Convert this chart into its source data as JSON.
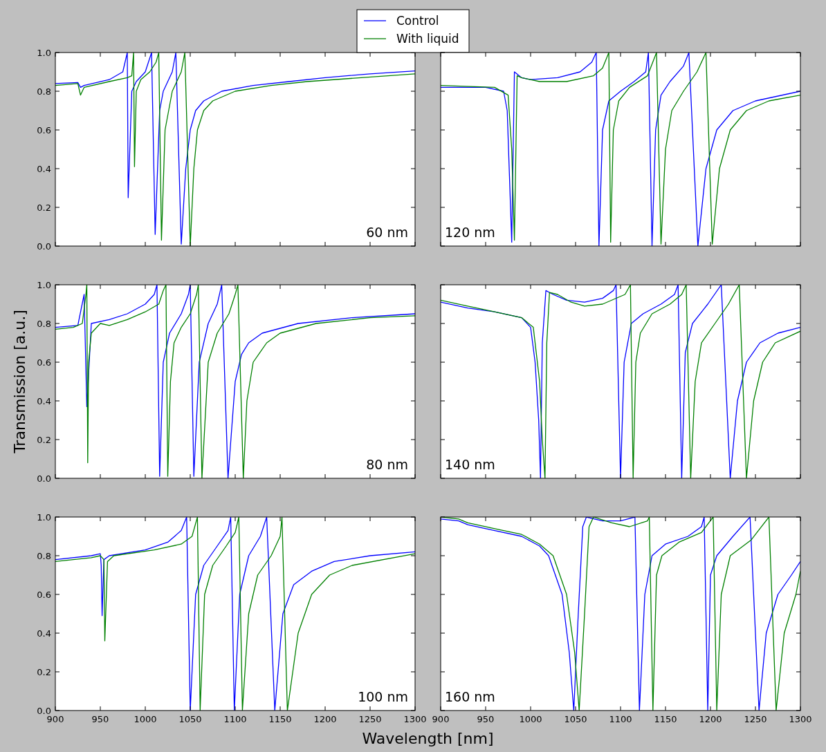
{
  "chart_data": [
    {
      "type": "line",
      "xlim": [
        900,
        1300
      ],
      "ylim": [
        0,
        1
      ],
      "xticks": [
        900,
        950,
        1000,
        1050,
        1100,
        1150,
        1200,
        1250,
        1300
      ],
      "yticks": [
        {
          "value": 0,
          "label": "0.0"
        },
        {
          "value": 0.2,
          "label": "0.2"
        },
        {
          "value": 0.4,
          "label": "0.4"
        },
        {
          "value": 0.6,
          "label": "0.6"
        },
        {
          "value": 0.8,
          "label": "0.8"
        },
        {
          "value": 1,
          "label": "1.0"
        }
      ],
      "tick_labels": "y",
      "legend": "top",
      "annotations": [
        "60 nm"
      ],
      "series": [
        {
          "name": "Control",
          "color": "#0000ff",
          "x": [
            900,
            925,
            928,
            932,
            960,
            975,
            980,
            981,
            985,
            990,
            1000,
            1007,
            1011,
            1016,
            1020,
            1030,
            1034,
            1040,
            1045,
            1050,
            1056,
            1065,
            1085,
            1120,
            1160,
            1200,
            1250,
            1300
          ],
          "values": [
            0.84,
            0.845,
            0.82,
            0.83,
            0.86,
            0.9,
            1.0,
            0.25,
            0.8,
            0.85,
            0.9,
            1.0,
            0.06,
            0.7,
            0.8,
            0.9,
            1.0,
            0.01,
            0.4,
            0.6,
            0.7,
            0.75,
            0.8,
            0.83,
            0.85,
            0.87,
            0.89,
            0.905
          ]
        },
        {
          "name": "With liquid",
          "color": "#008000",
          "x": [
            900,
            925,
            928,
            932,
            960,
            980,
            985,
            987,
            988,
            990,
            995,
            1005,
            1012,
            1015,
            1018,
            1022,
            1030,
            1040,
            1044,
            1050,
            1054,
            1058,
            1065,
            1075,
            1100,
            1140,
            1180,
            1240,
            1300
          ],
          "values": [
            0.83,
            0.84,
            0.78,
            0.82,
            0.85,
            0.87,
            0.88,
            1.0,
            0.41,
            0.8,
            0.86,
            0.9,
            0.95,
            1.0,
            0.03,
            0.6,
            0.8,
            0.9,
            1.0,
            0.0,
            0.4,
            0.6,
            0.7,
            0.75,
            0.8,
            0.83,
            0.85,
            0.87,
            0.89
          ]
        }
      ]
    },
    {
      "type": "line",
      "xlim": [
        900,
        1300
      ],
      "ylim": [
        0,
        1
      ],
      "xticks": [
        900,
        950,
        1000,
        1050,
        1100,
        1150,
        1200,
        1250,
        1300
      ],
      "yticks": [
        0,
        0.2,
        0.4,
        0.6,
        0.8,
        1
      ],
      "tick_labels": false,
      "annotations": [
        "120 nm"
      ],
      "series": [
        {
          "color": "#0000ff",
          "x": [
            900,
            950,
            970,
            974,
            979,
            982,
            990,
            1000,
            1030,
            1055,
            1068,
            1073,
            1076,
            1080,
            1087,
            1100,
            1115,
            1128,
            1131,
            1135,
            1139,
            1145,
            1155,
            1170,
            1176,
            1186,
            1195,
            1207,
            1225,
            1250,
            1300
          ],
          "values": [
            0.82,
            0.82,
            0.8,
            0.7,
            0.02,
            0.9,
            0.87,
            0.86,
            0.87,
            0.9,
            0.95,
            1.0,
            0.0,
            0.6,
            0.75,
            0.8,
            0.85,
            0.9,
            1.0,
            0.0,
            0.6,
            0.78,
            0.85,
            0.93,
            1.0,
            0.0,
            0.4,
            0.6,
            0.7,
            0.75,
            0.8
          ]
        },
        {
          "color": "#008000",
          "x": [
            900,
            960,
            975,
            979,
            982,
            985,
            990,
            1010,
            1040,
            1070,
            1080,
            1087,
            1089,
            1092,
            1098,
            1110,
            1130,
            1140,
            1145,
            1150,
            1157,
            1170,
            1185,
            1195,
            1202,
            1210,
            1222,
            1240,
            1265,
            1300
          ],
          "values": [
            0.83,
            0.82,
            0.78,
            0.5,
            0.03,
            0.88,
            0.87,
            0.85,
            0.85,
            0.88,
            0.92,
            1.0,
            0.02,
            0.6,
            0.75,
            0.82,
            0.88,
            1.0,
            0.01,
            0.5,
            0.7,
            0.8,
            0.9,
            1.0,
            0.01,
            0.4,
            0.6,
            0.7,
            0.75,
            0.78
          ]
        }
      ]
    },
    {
      "type": "line",
      "xlim": [
        900,
        1300
      ],
      "ylim": [
        0,
        1
      ],
      "xticks": [
        900,
        950,
        1000,
        1050,
        1100,
        1150,
        1200,
        1250,
        1300
      ],
      "yticks": [
        {
          "value": 0,
          "label": "0.0"
        },
        {
          "value": 0.2,
          "label": "0.2"
        },
        {
          "value": 0.4,
          "label": "0.4"
        },
        {
          "value": 0.6,
          "label": "0.6"
        },
        {
          "value": 0.8,
          "label": "0.8"
        },
        {
          "value": 1,
          "label": "1.0"
        }
      ],
      "tick_labels": "y",
      "ylabel": "Transmission [a.u.]",
      "annotations": [
        "80 nm"
      ],
      "series": [
        {
          "color": "#0000ff",
          "x": [
            900,
            925,
            932,
            935,
            940,
            960,
            980,
            1000,
            1010,
            1013,
            1016,
            1020,
            1027,
            1040,
            1048,
            1050,
            1054,
            1060,
            1070,
            1080,
            1085,
            1092,
            1100,
            1107,
            1115,
            1130,
            1170,
            1230,
            1300
          ],
          "values": [
            0.78,
            0.79,
            0.95,
            0.37,
            0.8,
            0.82,
            0.85,
            0.9,
            0.95,
            1.0,
            0.01,
            0.6,
            0.75,
            0.85,
            0.95,
            1.0,
            0.01,
            0.6,
            0.8,
            0.9,
            1.0,
            0.0,
            0.5,
            0.64,
            0.7,
            0.75,
            0.8,
            0.83,
            0.85
          ]
        },
        {
          "color": "#008000",
          "x": [
            900,
            920,
            930,
            934,
            935,
            936,
            937,
            940,
            950,
            960,
            980,
            1000,
            1015,
            1020,
            1023,
            1025,
            1028,
            1032,
            1040,
            1050,
            1057,
            1059,
            1063,
            1070,
            1080,
            1093,
            1100,
            1103,
            1109,
            1113,
            1120,
            1135,
            1150,
            1190,
            1250,
            1300
          ],
          "values": [
            0.77,
            0.78,
            0.8,
            0.95,
            1.0,
            0.08,
            0.6,
            0.75,
            0.8,
            0.79,
            0.82,
            0.86,
            0.9,
            0.97,
            1.0,
            0.01,
            0.5,
            0.7,
            0.78,
            0.85,
            0.95,
            1.0,
            0.0,
            0.6,
            0.75,
            0.85,
            0.95,
            1.0,
            0.0,
            0.4,
            0.6,
            0.7,
            0.75,
            0.8,
            0.83,
            0.84
          ]
        }
      ]
    },
    {
      "type": "line",
      "xlim": [
        900,
        1300
      ],
      "ylim": [
        0,
        1
      ],
      "xticks": [
        900,
        950,
        1000,
        1050,
        1100,
        1150,
        1200,
        1250,
        1300
      ],
      "yticks": [
        0,
        0.2,
        0.4,
        0.6,
        0.8,
        1
      ],
      "tick_labels": false,
      "annotations": [
        "140 nm"
      ],
      "series": [
        {
          "color": "#0000ff",
          "x": [
            900,
            930,
            960,
            990,
            1000,
            1005,
            1009,
            1011,
            1013,
            1017,
            1025,
            1040,
            1060,
            1080,
            1092,
            1095,
            1100,
            1104,
            1112,
            1125,
            1145,
            1160,
            1164,
            1168,
            1172,
            1180,
            1197,
            1212,
            1222,
            1230,
            1240,
            1255,
            1275,
            1300
          ],
          "values": [
            0.91,
            0.88,
            0.86,
            0.83,
            0.78,
            0.6,
            0.3,
            0.0,
            0.7,
            0.97,
            0.95,
            0.92,
            0.91,
            0.93,
            0.97,
            1.0,
            0.0,
            0.6,
            0.8,
            0.85,
            0.9,
            0.95,
            1.0,
            0.0,
            0.65,
            0.8,
            0.9,
            1.0,
            0.0,
            0.4,
            0.6,
            0.7,
            0.75,
            0.78
          ]
        },
        {
          "color": "#008000",
          "x": [
            900,
            930,
            960,
            990,
            1003,
            1010,
            1013,
            1016,
            1018,
            1021,
            1030,
            1045,
            1060,
            1080,
            1105,
            1111,
            1114,
            1117,
            1122,
            1135,
            1155,
            1168,
            1173,
            1178,
            1183,
            1190,
            1205,
            1220,
            1232,
            1240,
            1248,
            1258,
            1272,
            1300
          ],
          "values": [
            0.92,
            0.89,
            0.86,
            0.83,
            0.78,
            0.5,
            0.2,
            0.0,
            0.7,
            0.96,
            0.95,
            0.91,
            0.89,
            0.9,
            0.95,
            1.0,
            0.0,
            0.6,
            0.75,
            0.85,
            0.9,
            0.95,
            1.0,
            0.0,
            0.5,
            0.7,
            0.8,
            0.9,
            1.0,
            0.0,
            0.4,
            0.6,
            0.7,
            0.76
          ]
        }
      ]
    },
    {
      "type": "line",
      "xlim": [
        900,
        1300
      ],
      "ylim": [
        0,
        1
      ],
      "xticks": [
        900,
        950,
        1000,
        1050,
        1100,
        1150,
        1200,
        1250,
        1300
      ],
      "yticks": [
        {
          "value": 0,
          "label": "0.0"
        },
        {
          "value": 0.2,
          "label": "0.2"
        },
        {
          "value": 0.4,
          "label": "0.4"
        },
        {
          "value": 0.6,
          "label": "0.6"
        },
        {
          "value": 0.8,
          "label": "0.8"
        },
        {
          "value": 1,
          "label": "1.0"
        }
      ],
      "xlabel": "Wavelength [nm]",
      "annotations": [
        "100 nm"
      ],
      "series": [
        {
          "color": "#0000ff",
          "x": [
            900,
            940,
            950,
            951,
            952,
            954,
            960,
            1000,
            1025,
            1040,
            1046,
            1050,
            1056,
            1065,
            1080,
            1092,
            1095,
            1099,
            1105,
            1115,
            1128,
            1135,
            1144,
            1153,
            1165,
            1185,
            1210,
            1250,
            1300
          ],
          "values": [
            0.78,
            0.8,
            0.81,
            0.75,
            0.49,
            0.78,
            0.8,
            0.83,
            0.87,
            0.93,
            1.0,
            0.0,
            0.6,
            0.75,
            0.85,
            0.93,
            1.0,
            0.0,
            0.6,
            0.8,
            0.9,
            1.0,
            0.0,
            0.5,
            0.65,
            0.72,
            0.77,
            0.8,
            0.82
          ]
        },
        {
          "color": "#008000",
          "x": [
            900,
            940,
            950,
            954,
            955,
            958,
            965,
            1010,
            1040,
            1052,
            1058,
            1061,
            1066,
            1075,
            1090,
            1100,
            1104,
            1108,
            1115,
            1125,
            1140,
            1150,
            1152,
            1158,
            1170,
            1185,
            1205,
            1230,
            1300
          ],
          "values": [
            0.77,
            0.79,
            0.8,
            0.78,
            0.36,
            0.77,
            0.8,
            0.83,
            0.86,
            0.9,
            1.0,
            0.0,
            0.6,
            0.75,
            0.85,
            0.92,
            1.0,
            0.0,
            0.5,
            0.7,
            0.8,
            0.9,
            1.0,
            0.0,
            0.4,
            0.6,
            0.7,
            0.75,
            0.81
          ]
        }
      ]
    },
    {
      "type": "line",
      "xlim": [
        900,
        1300
      ],
      "ylim": [
        0,
        1
      ],
      "xticks": [
        900,
        950,
        1000,
        1050,
        1100,
        1150,
        1200,
        1250,
        1300
      ],
      "yticks": [
        0,
        0.2,
        0.4,
        0.6,
        0.8,
        1
      ],
      "tick_labels": "x",
      "annotations": [
        "160 nm"
      ],
      "series": [
        {
          "color": "#0000ff",
          "x": [
            900,
            920,
            930,
            960,
            990,
            1010,
            1020,
            1035,
            1043,
            1048,
            1053,
            1058,
            1062,
            1080,
            1100,
            1116,
            1121,
            1127,
            1135,
            1150,
            1175,
            1190,
            1193,
            1197,
            1200,
            1207,
            1225,
            1244,
            1254,
            1262,
            1275,
            1290,
            1300
          ],
          "values": [
            0.99,
            0.98,
            0.96,
            0.93,
            0.9,
            0.85,
            0.8,
            0.6,
            0.3,
            0.0,
            0.5,
            0.95,
            1.0,
            0.98,
            0.98,
            1.0,
            0.0,
            0.6,
            0.8,
            0.86,
            0.9,
            0.95,
            1.0,
            0.0,
            0.7,
            0.8,
            0.9,
            1.0,
            0.0,
            0.4,
            0.6,
            0.7,
            0.77
          ]
        },
        {
          "color": "#008000",
          "x": [
            900,
            920,
            930,
            960,
            990,
            1010,
            1025,
            1040,
            1049,
            1054,
            1060,
            1065,
            1070,
            1090,
            1110,
            1130,
            1132,
            1136,
            1140,
            1146,
            1165,
            1190,
            1203,
            1207,
            1212,
            1222,
            1245,
            1265,
            1273,
            1282,
            1295,
            1300
          ],
          "values": [
            1.0,
            0.99,
            0.97,
            0.94,
            0.91,
            0.86,
            0.8,
            0.6,
            0.3,
            0.0,
            0.5,
            0.95,
            1.0,
            0.97,
            0.95,
            0.98,
            1.0,
            0.0,
            0.7,
            0.8,
            0.87,
            0.92,
            1.0,
            0.0,
            0.6,
            0.8,
            0.88,
            1.0,
            0.0,
            0.4,
            0.6,
            0.72
          ]
        }
      ]
    }
  ]
}
